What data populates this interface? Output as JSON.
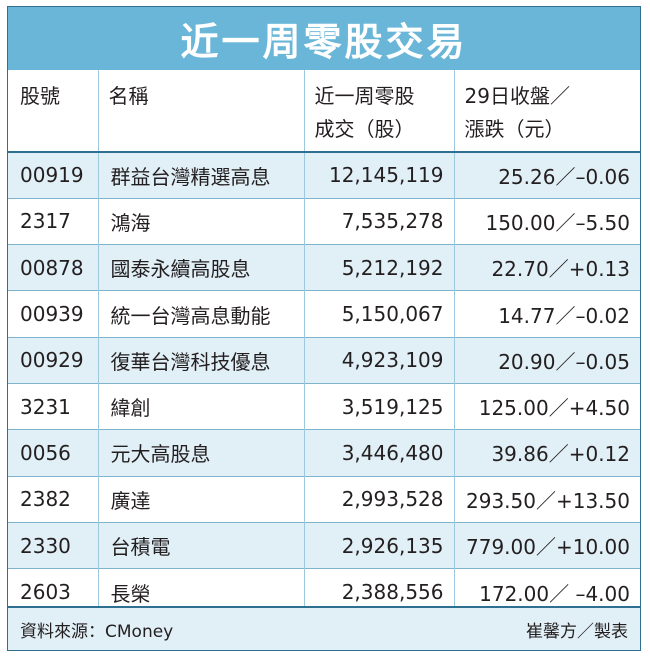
{
  "title": "近一周零股交易",
  "headers": {
    "code": "股號",
    "name": "名稱",
    "volume_line1": "近一周零股",
    "volume_line2": "成交（股）",
    "price_line1": "29日收盤／",
    "price_line2": "漲跌（元）"
  },
  "rows": [
    {
      "code": "00919",
      "name": "群益台灣精選高息",
      "volume": "12,145,119",
      "price": "25.26／–0.06"
    },
    {
      "code": "2317",
      "name": "鴻海",
      "volume": "7,535,278",
      "price": "150.00／–5.50"
    },
    {
      "code": "00878",
      "name": "國泰永續高股息",
      "volume": "5,212,192",
      "price": "22.70／+0.13"
    },
    {
      "code": "00939",
      "name": "統一台灣高息動能",
      "volume": "5,150,067",
      "price": "14.77／–0.02"
    },
    {
      "code": "00929",
      "name": "復華台灣科技優息",
      "volume": "4,923,109",
      "price": "20.90／–0.05"
    },
    {
      "code": "3231",
      "name": "緯創",
      "volume": "3,519,125",
      "price": "125.00／+4.50"
    },
    {
      "code": "0056",
      "name": "元大高股息",
      "volume": "3,446,480",
      "price": "39.86／+0.12"
    },
    {
      "code": "2382",
      "name": "廣達",
      "volume": "2,993,528",
      "price": "293.50／+13.50"
    },
    {
      "code": "2330",
      "name": "台積電",
      "volume": "2,926,135",
      "price": "779.00／+10.00"
    },
    {
      "code": "2603",
      "name": "長榮",
      "volume": "2,388,556",
      "price": "172.00／ –4.00"
    }
  ],
  "footer": {
    "source": "資料來源：CMoney",
    "credit": "崔馨方／製表"
  },
  "colors": {
    "title_bar": "#6ab6d8",
    "stripe": "#e1eff6",
    "border": "#2f6f8f"
  }
}
